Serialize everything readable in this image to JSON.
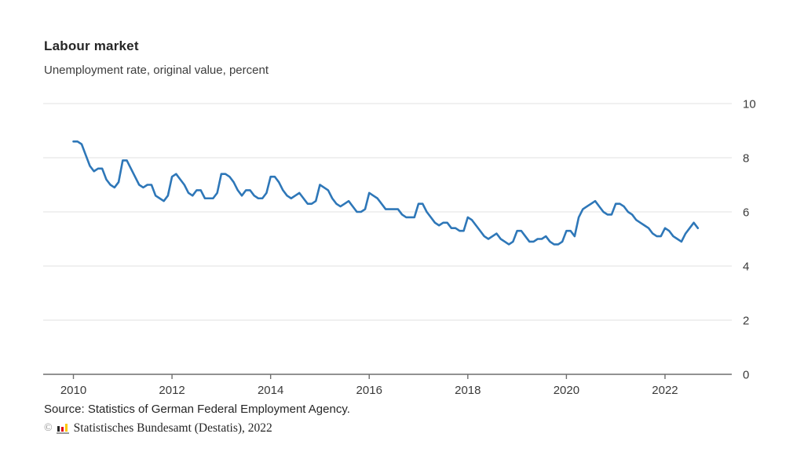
{
  "header": {
    "title": "Labour market",
    "subtitle": "Unemployment rate, original value, percent"
  },
  "chart_data": {
    "type": "line",
    "title": "Labour market",
    "subtitle": "Unemployment rate, original value, percent",
    "xlabel": "",
    "ylabel": "percent",
    "x_start": "2010-01",
    "x_end": "2022-09",
    "frequency": "monthly",
    "x_ticks": [
      2010,
      2012,
      2014,
      2016,
      2018,
      2020,
      2022
    ],
    "x_tick_labels": [
      "2010",
      "2012",
      "2014",
      "2016",
      "2018",
      "2020",
      "2022"
    ],
    "y_ticks": [
      0,
      2,
      4,
      6,
      8,
      10
    ],
    "y_tick_labels": [
      "0",
      "2",
      "4",
      "6",
      "8",
      "10"
    ],
    "ylim": [
      0,
      10
    ],
    "grid": true,
    "legend_position": "none",
    "line_color": "#2e77b8",
    "grid_color": "#e2e2e2",
    "axis_color": "#6e6e6e",
    "tick_label_color": "#3a3a3a",
    "series": [
      {
        "name": "Unemployment rate, original value, percent",
        "values": [
          8.6,
          8.6,
          8.5,
          8.1,
          7.7,
          7.5,
          7.6,
          7.6,
          7.2,
          7.0,
          6.9,
          7.1,
          7.9,
          7.9,
          7.6,
          7.3,
          7.0,
          6.9,
          7.0,
          7.0,
          6.6,
          6.5,
          6.4,
          6.6,
          7.3,
          7.4,
          7.2,
          7.0,
          6.7,
          6.6,
          6.8,
          6.8,
          6.5,
          6.5,
          6.5,
          6.7,
          7.4,
          7.4,
          7.3,
          7.1,
          6.8,
          6.6,
          6.8,
          6.8,
          6.6,
          6.5,
          6.5,
          6.7,
          7.3,
          7.3,
          7.1,
          6.8,
          6.6,
          6.5,
          6.6,
          6.7,
          6.5,
          6.3,
          6.3,
          6.4,
          7.0,
          6.9,
          6.8,
          6.5,
          6.3,
          6.2,
          6.3,
          6.4,
          6.2,
          6.0,
          6.0,
          6.1,
          6.7,
          6.6,
          6.5,
          6.3,
          6.1,
          6.1,
          6.1,
          6.1,
          5.9,
          5.8,
          5.8,
          5.8,
          6.3,
          6.3,
          6.0,
          5.8,
          5.6,
          5.5,
          5.6,
          5.6,
          5.4,
          5.4,
          5.3,
          5.3,
          5.8,
          5.7,
          5.5,
          5.3,
          5.1,
          5.0,
          5.1,
          5.2,
          5.0,
          4.9,
          4.8,
          4.9,
          5.3,
          5.3,
          5.1,
          4.9,
          4.9,
          5.0,
          5.0,
          5.1,
          4.9,
          4.8,
          4.8,
          4.9,
          5.3,
          5.3,
          5.1,
          5.8,
          6.1,
          6.2,
          6.3,
          6.4,
          6.2,
          6.0,
          5.9,
          5.9,
          6.3,
          6.3,
          6.2,
          6.0,
          5.9,
          5.7,
          5.6,
          5.5,
          5.4,
          5.2,
          5.1,
          5.1,
          5.4,
          5.3,
          5.1,
          5.0,
          4.9,
          5.2,
          5.4,
          5.6,
          5.4
        ]
      }
    ]
  },
  "footer": {
    "source": "Source: Statistics of German Federal Employment Agency.",
    "copyright_symbol": "©",
    "copyright_text": "Statistisches Bundesamt (Destatis), 2022",
    "logo": {
      "bar_colors": [
        "#262626",
        "#e30016",
        "#fdc800"
      ],
      "bar_heights": [
        7,
        6,
        10
      ],
      "base_color": "#9a9a9a"
    }
  }
}
